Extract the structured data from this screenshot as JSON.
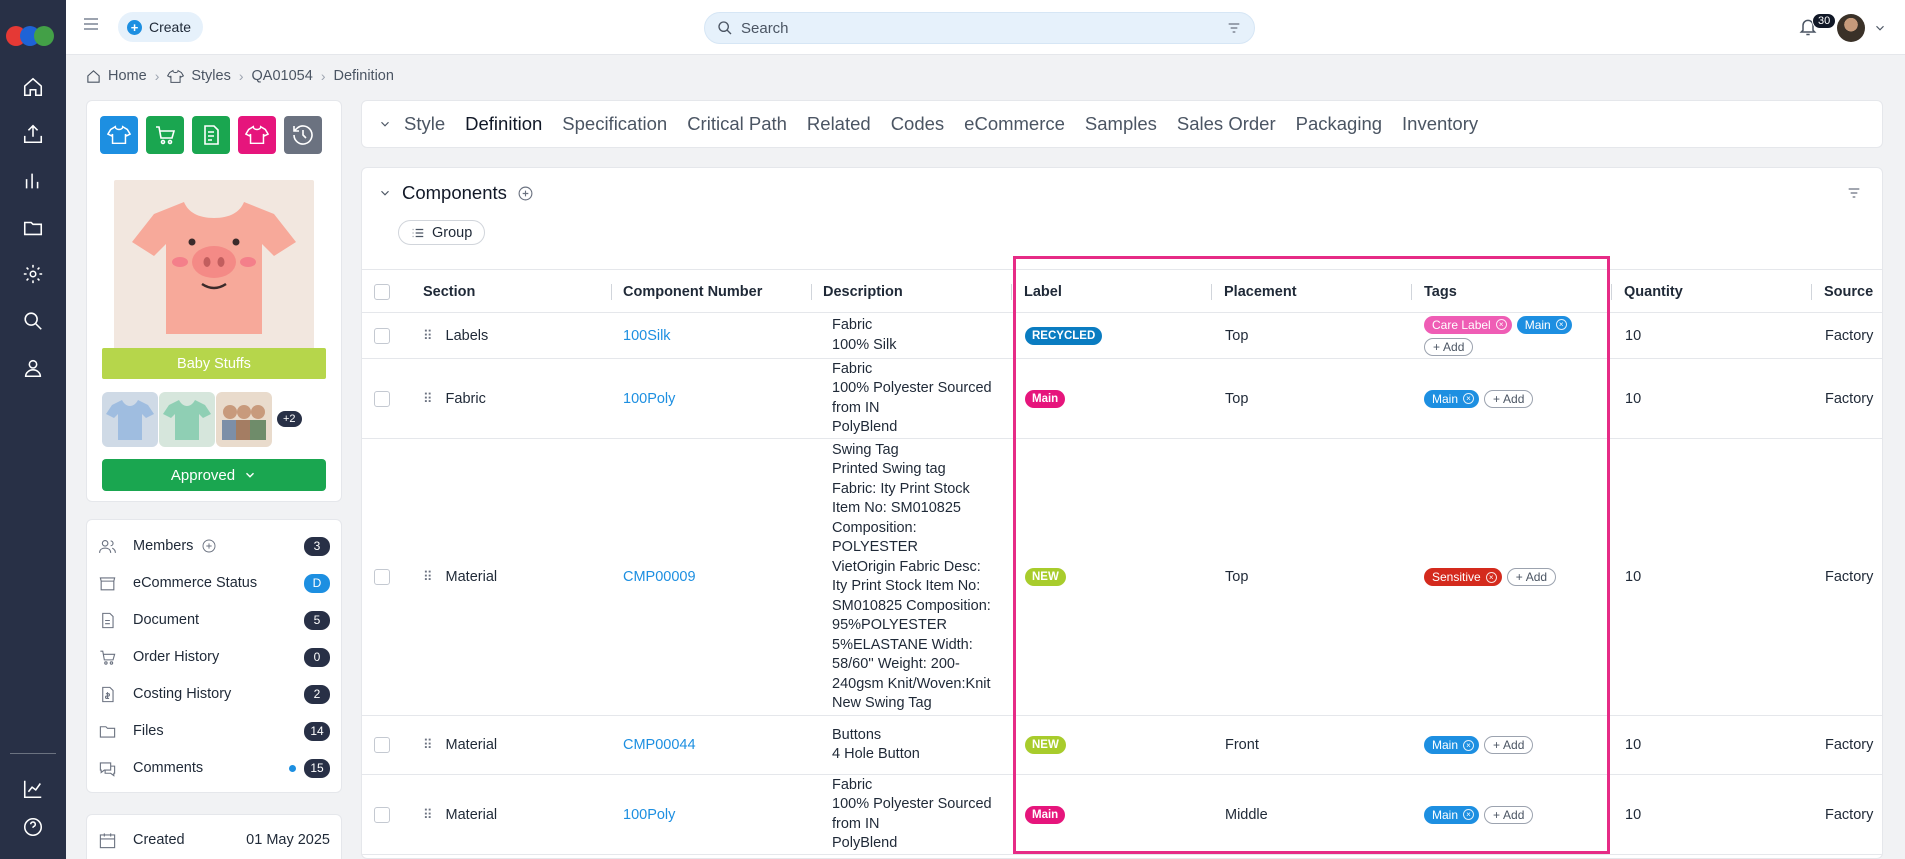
{
  "app": {
    "notifications": "30"
  },
  "topbar": {
    "create_label": "Create",
    "search_placeholder": "Search"
  },
  "breadcrumb": [
    "Home",
    "Styles",
    "QA01054",
    "Definition"
  ],
  "sidebar_card": {
    "product_name": "Baby Stuffs",
    "more_images": "+2",
    "status": "Approved"
  },
  "side_stats": [
    {
      "label": "Members",
      "count": "3",
      "icon": "members-icon"
    },
    {
      "label": "eCommerce Status",
      "count": "D",
      "icon": "store-icon"
    },
    {
      "label": "Document",
      "count": "5",
      "icon": "document-icon"
    },
    {
      "label": "Order History",
      "count": "0",
      "icon": "cart-icon"
    },
    {
      "label": "Costing History",
      "count": "2",
      "icon": "costing-icon"
    },
    {
      "label": "Files",
      "count": "14",
      "icon": "folder-icon"
    },
    {
      "label": "Comments",
      "count": "15",
      "icon": "comments-icon"
    }
  ],
  "created": {
    "label": "Created",
    "value": "01 May 2025"
  },
  "tabs": [
    "Style",
    "Definition",
    "Specification",
    "Critical Path",
    "Related",
    "Codes",
    "eCommerce",
    "Samples",
    "Sales Order",
    "Packaging",
    "Inventory"
  ],
  "components": {
    "title": "Components",
    "group_label": "Group",
    "columns": [
      "Section",
      "Component Number",
      "Description",
      "Label",
      "Placement",
      "Tags",
      "Quantity",
      "Source"
    ],
    "add_label": "Add",
    "rows": [
      {
        "section": "Labels",
        "number": "100Silk",
        "description": [
          "Fabric",
          "100% Silk"
        ],
        "label": "RECYCLED",
        "label_color": "#0a7cc1",
        "placement": "Top",
        "tags": [
          {
            "text": "Care Label",
            "color": "#ef5db5"
          },
          {
            "text": "Main",
            "color": "#1d8fe1"
          }
        ],
        "quantity": "10",
        "source": "Factory"
      },
      {
        "section": "Fabric",
        "number": "100Poly",
        "description": [
          "Fabric",
          "100% Polyester Sourced",
          "from IN",
          "PolyBlend"
        ],
        "label": "Main",
        "label_color": "#e6157c",
        "placement": "Top",
        "tags": [
          {
            "text": "Main",
            "color": "#1d8fe1"
          }
        ],
        "quantity": "10",
        "source": "Factory"
      },
      {
        "section": "Material",
        "number": "CMP00009",
        "description": [
          "Swing Tag",
          "Printed Swing tag",
          "Fabric: Ity Print Stock",
          "Item No: SM010825",
          "Composition:",
          "POLYESTER",
          "VietOrigin Fabric Desc:",
          "Ity Print Stock Item No:",
          "SM010825 Composition:",
          "95%POLYESTER",
          "5%ELASTANE Width:",
          "58/60'' Weight: 200-",
          "240gsm Knit/Woven:Knit",
          "New Swing Tag"
        ],
        "label": "NEW",
        "label_color": "#a8cc2c",
        "placement": "Top",
        "tags": [
          {
            "text": "Sensitive",
            "color": "#d42a1d"
          }
        ],
        "quantity": "10",
        "source": "Factory"
      },
      {
        "section": "Material",
        "number": "CMP00044",
        "description": [
          "Buttons",
          "4 Hole Button"
        ],
        "label": "NEW",
        "label_color": "#a8cc2c",
        "placement": "Front",
        "tags": [
          {
            "text": "Main",
            "color": "#1d8fe1"
          }
        ],
        "quantity": "10",
        "source": "Factory"
      },
      {
        "section": "Material",
        "number": "100Poly",
        "description": [
          "Fabric",
          "100% Polyester Sourced",
          "from IN",
          "PolyBlend"
        ],
        "label": "Main",
        "label_color": "#e6157c",
        "placement": "Middle",
        "tags": [
          {
            "text": "Main",
            "color": "#1d8fe1"
          }
        ],
        "quantity": "10",
        "source": "Factory"
      }
    ]
  }
}
